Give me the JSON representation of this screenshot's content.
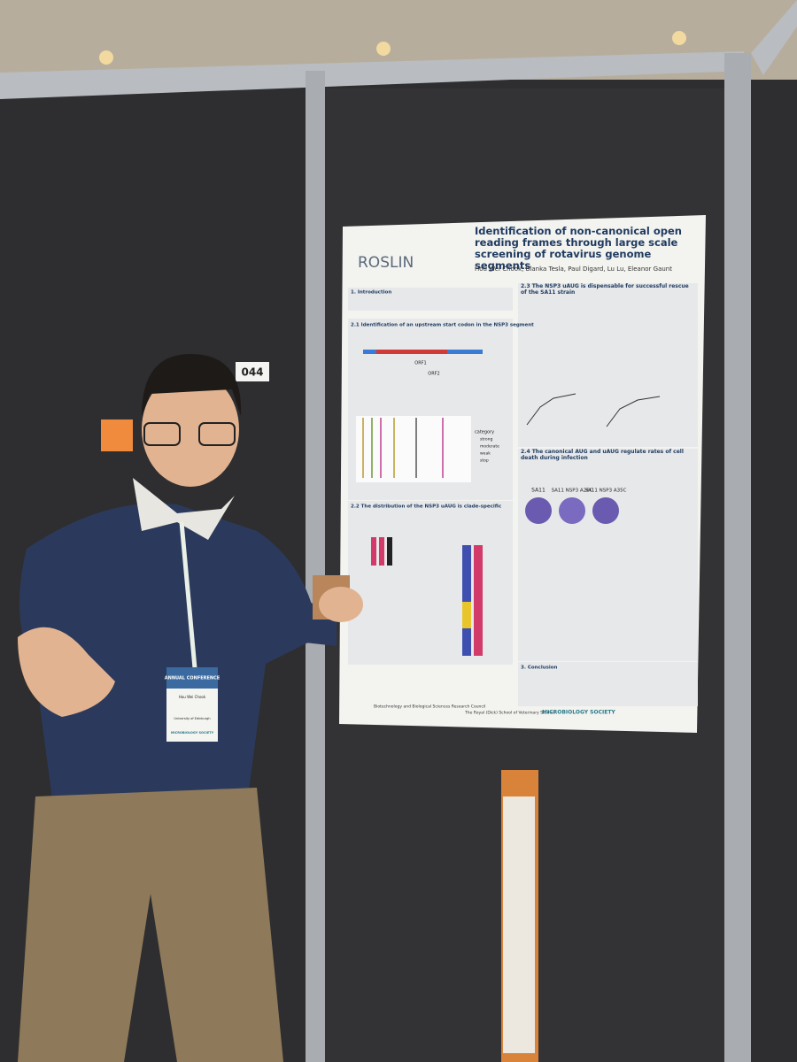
{
  "booth": {
    "number": "044"
  },
  "poster": {
    "logo": "ROSLIN",
    "title": "Identification of non-canonical open reading frames through large scale screening of rotavirus genome segments",
    "authors": "Hou Wei Chook, Blanka Tesla, Paul Digard, Lu Lu, Eleanor Gaunt",
    "sections": [
      "1. Introduction",
      "2.1 Identification of an upstream start codon in the NSP3 segment",
      "2.2 The distribution of the NSP3 uAUG is clade-specific",
      "2.3 The NSP3 uAUG is dispensable for successful rescue of the SA11 strain",
      "2.4 The canonical AUG and uAUG regulate rates of cell death during infection",
      "3. Conclusion"
    ],
    "orf_labels": [
      "ORF1",
      "ORF2"
    ],
    "legend_title": "category",
    "legend_items": [
      "strong",
      "moderate",
      "weak",
      "stop"
    ],
    "plaque_labels": [
      "SA11",
      "SA11 NSP3 A26C",
      "SA11 NSP3 A35C"
    ],
    "footer": [
      "Biotechnology and Biological Sciences Research Council",
      "The Royal (Dick) School of Veterinary Studies",
      "MICROBIOLOGY SOCIETY"
    ]
  },
  "badge": {
    "event": "ANNUAL CONFERENCE",
    "name": "Hou Wei Chook",
    "affiliation": "University of Edinburgh",
    "sponsor": "MICROBIOLOGY SOCIETY"
  }
}
